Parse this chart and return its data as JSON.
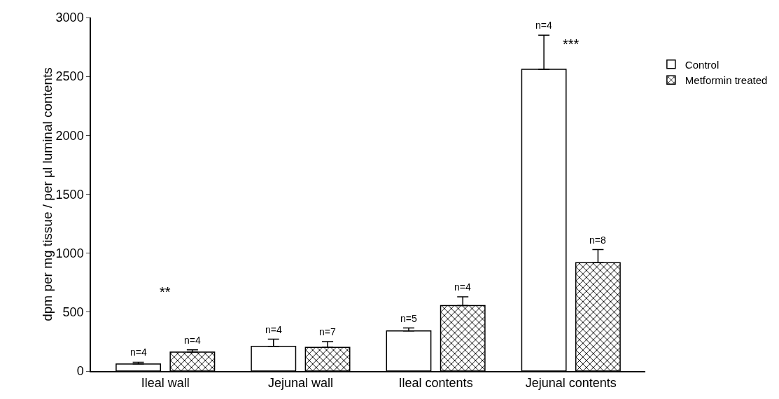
{
  "chart_data": {
    "type": "bar",
    "ylabel": "dpm per mg tissue / per µl luminal contents",
    "categories": [
      "Ileal wall",
      "Jejunal wall",
      "Ileal contents",
      "Jejunal contents"
    ],
    "series": [
      {
        "name": "Control",
        "color": "#ffffff",
        "values": [
          60,
          210,
          340,
          2560
        ],
        "errors": [
          [
            60,
            75
          ],
          [
            210,
            270
          ],
          [
            340,
            365
          ],
          [
            2560,
            2850
          ]
        ]
      },
      {
        "name": "Metformin treated",
        "color": "#000000",
        "values": [
          160,
          200,
          555,
          920
        ],
        "errors": [
          [
            160,
            180
          ],
          [
            200,
            250
          ],
          [
            555,
            630
          ],
          [
            920,
            1030
          ]
        ]
      }
    ],
    "annotations": [
      "n=4",
      "n=4",
      "n=4",
      "n=7",
      "n=5",
      "n=4",
      "n=4",
      "n=8",
      "**",
      "***"
    ],
    "ylim": [
      0,
      3000
    ],
    "yticks": [
      0,
      500,
      1000,
      1500,
      2000,
      2500,
      3000
    ],
    "grid": false,
    "legend": "top right"
  }
}
